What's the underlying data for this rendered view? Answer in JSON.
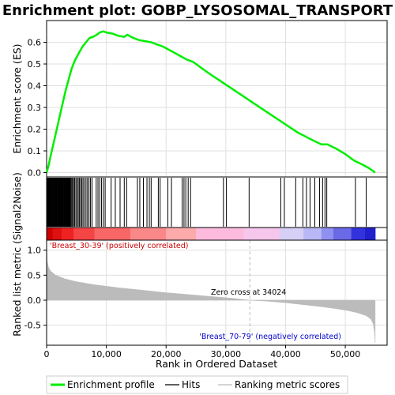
{
  "title": "Enrichment plot: GOBP_LYSOSOMAL_TRANSPORT",
  "chart_data": {
    "type": "line",
    "xlabel": "Rank in Ordered Dataset",
    "xlim": [
      0,
      57000
    ],
    "x_ticks": [
      0,
      10000,
      20000,
      30000,
      40000,
      50000
    ],
    "x_tick_labels": [
      "0",
      "10,000",
      "20,000",
      "30,000",
      "40,000",
      "50,000"
    ],
    "enrichment": {
      "ylabel": "Enrichment score (ES)",
      "ylim": [
        -0.02,
        0.7
      ],
      "y_ticks": [
        0.0,
        0.1,
        0.2,
        0.3,
        0.4,
        0.5,
        0.6
      ],
      "y_tick_labels": [
        "0.0",
        "0.1",
        "0.2",
        "0.3",
        "0.4",
        "0.5",
        "0.6"
      ],
      "color": "#00ee00",
      "x": [
        0,
        300,
        700,
        1200,
        1700,
        2200,
        2700,
        3200,
        3700,
        4200,
        4800,
        5400,
        6000,
        6600,
        7200,
        7800,
        8400,
        8900,
        9500,
        10000,
        11000,
        12000,
        13000,
        13500,
        14500,
        15500,
        16500,
        17500,
        18500,
        19500,
        20500,
        21500,
        22500,
        23500,
        24500,
        27000,
        30000,
        33000,
        36000,
        39000,
        42000,
        44500,
        46000,
        47000,
        48500,
        50000,
        51500,
        53000,
        54000,
        55000
      ],
      "y": [
        0.0,
        0.03,
        0.08,
        0.14,
        0.2,
        0.26,
        0.32,
        0.38,
        0.43,
        0.48,
        0.52,
        0.55,
        0.58,
        0.6,
        0.62,
        0.625,
        0.635,
        0.645,
        0.65,
        0.645,
        0.64,
        0.63,
        0.625,
        0.635,
        0.62,
        0.61,
        0.605,
        0.6,
        0.59,
        0.58,
        0.565,
        0.55,
        0.535,
        0.52,
        0.51,
        0.46,
        0.405,
        0.35,
        0.295,
        0.24,
        0.185,
        0.15,
        0.13,
        0.13,
        0.11,
        0.085,
        0.055,
        0.035,
        0.02,
        0.0
      ]
    },
    "hits": {
      "color": "#000000",
      "x": [
        80,
        160,
        240,
        330,
        420,
        510,
        600,
        690,
        780,
        870,
        960,
        1050,
        1140,
        1230,
        1320,
        1410,
        1500,
        1590,
        1680,
        1770,
        1860,
        1950,
        2040,
        2130,
        2220,
        2310,
        2400,
        2490,
        2580,
        2670,
        2760,
        2850,
        2940,
        3030,
        3120,
        3210,
        3300,
        3390,
        3480,
        3570,
        3660,
        3750,
        3840,
        3930,
        4050,
        4200,
        4350,
        4500,
        4700,
        4900,
        5100,
        5300,
        5500,
        5700,
        5900,
        6100,
        6350,
        6600,
        6850,
        7100,
        7350,
        7600,
        8300,
        8600,
        8900,
        9200,
        9500,
        9800,
        10800,
        11500,
        12300,
        13000,
        13400,
        15200,
        15600,
        16200,
        16800,
        17200,
        17500,
        18700,
        19000,
        20300,
        20900,
        22700,
        23000,
        23300,
        23700,
        24100,
        29600,
        30100,
        33900,
        39200,
        39800,
        41700,
        42900,
        43500,
        44100,
        44900,
        45700,
        46200,
        46600,
        46900,
        51700,
        53500
      ]
    },
    "ranking": {
      "ylabel": "Ranked list metric (Signal2Noise)",
      "ylim": [
        -0.9,
        1.2
      ],
      "y_ticks": [
        -0.5,
        0.0,
        0.5,
        1.0
      ],
      "y_tick_labels": [
        "-0.5",
        "0.0",
        "0.5",
        "1.0"
      ],
      "fill_color": "#bbbbbb",
      "x": [
        0,
        100,
        300,
        700,
        1500,
        3000,
        5000,
        8000,
        12000,
        16000,
        20000,
        24000,
        28000,
        31000,
        34024,
        37000,
        40000,
        43000,
        46000,
        48500,
        50500,
        52000,
        53500,
        54300,
        54700,
        54900,
        55000
      ],
      "y": [
        1.2,
        0.78,
        0.66,
        0.58,
        0.5,
        0.43,
        0.37,
        0.31,
        0.25,
        0.2,
        0.15,
        0.11,
        0.07,
        0.04,
        0.0,
        -0.02,
        -0.05,
        -0.09,
        -0.13,
        -0.17,
        -0.21,
        -0.25,
        -0.31,
        -0.38,
        -0.48,
        -0.65,
        -0.85
      ]
    },
    "zero_cross_x": 34024,
    "annotations": {
      "positive": "'Breast_30-39' (positively correlated)",
      "negative": "'Breast_70-79' (negatively correlated)",
      "zero_cross": "Zero cross at 34024"
    },
    "heat_bar": {
      "colors": [
        "#cc0000",
        "#dd1111",
        "#ee2222",
        "#f44444",
        "#f86666",
        "#fb8888",
        "#fcaaaa",
        "#fcbbdd",
        "#f6c6ec",
        "#d6d0f6",
        "#b8b8f6",
        "#9090f0",
        "#6a6ae8",
        "#3333dd",
        "#2020cc"
      ],
      "boundaries": [
        0,
        1000,
        2500,
        4500,
        8000,
        14000,
        20000,
        25000,
        33000,
        39000,
        43000,
        46000,
        48000,
        51000,
        53300,
        55000
      ]
    },
    "legend": {
      "placement": "bottom",
      "items": [
        {
          "label": "Enrichment profile",
          "color": "#00ee00",
          "style": "thick"
        },
        {
          "label": "Hits",
          "color": "#000000",
          "style": "thin"
        },
        {
          "label": "Ranking metric scores",
          "color": "#bbbbbb",
          "style": "thin"
        }
      ]
    }
  }
}
